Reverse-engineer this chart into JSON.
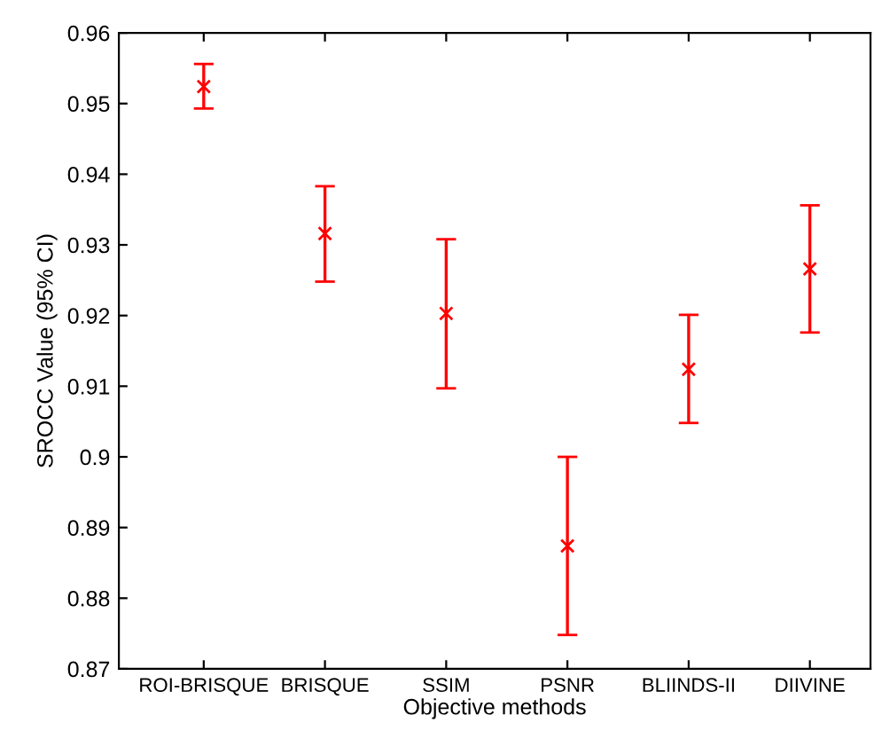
{
  "chart_data": {
    "type": "scatter",
    "xlabel": "Objective methods",
    "ylabel": "SROCC Value (95% CI)",
    "categories": [
      "ROI-BRISQUE",
      "BRISQUE",
      "SSIM",
      "PSNR",
      "BLIINDS-II",
      "DIIVINE"
    ],
    "series": [
      {
        "color": "#ff0000",
        "values": [
          0.9524,
          0.9316,
          0.9203,
          0.8874,
          0.9124,
          0.9266
        ],
        "errors": [
          [
            0.9493,
            0.9556
          ],
          [
            0.9248,
            0.9383
          ],
          [
            0.9097,
            0.9308
          ],
          [
            0.8748,
            0.9
          ],
          [
            0.9048,
            0.9201
          ],
          [
            0.9176,
            0.9356
          ]
        ]
      }
    ],
    "ylim": [
      0.87,
      0.96
    ],
    "yticks": [
      0.87,
      0.88,
      0.89,
      0.9,
      0.91,
      0.92,
      0.93,
      0.94,
      0.95,
      0.96
    ],
    "marker": "cross",
    "grid": false,
    "legend": false
  }
}
